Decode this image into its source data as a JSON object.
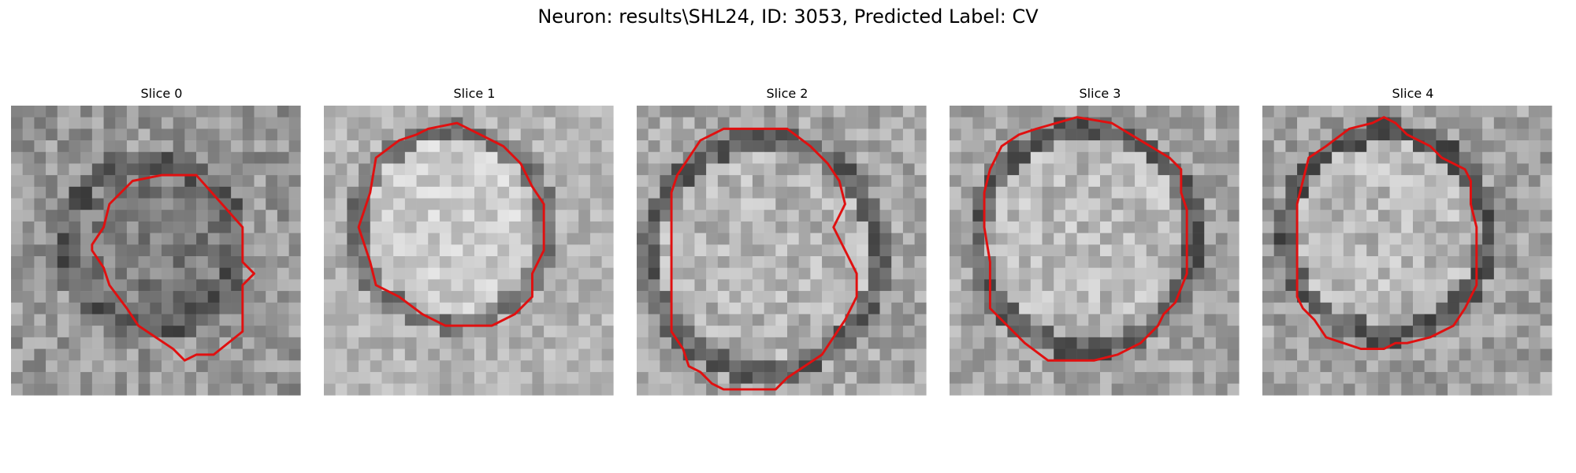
{
  "figure": {
    "title": "Neuron: results\\SHL24, ID: 3053, Predicted Label: CV",
    "contour_color": "#e01010"
  },
  "panels": [
    {
      "title": "Slice 0",
      "contour": [
        [
          13.5,
          5.5
        ],
        [
          15.5,
          5.5
        ],
        [
          19.5,
          10
        ],
        [
          19.5,
          13
        ],
        [
          20.5,
          14
        ],
        [
          19.5,
          15
        ],
        [
          19.5,
          19
        ],
        [
          17,
          21
        ],
        [
          15.5,
          21
        ],
        [
          14.5,
          21.5
        ],
        [
          13.5,
          20.5
        ],
        [
          12,
          19.5
        ],
        [
          10.5,
          18.5
        ],
        [
          9.5,
          17
        ],
        [
          8,
          15
        ],
        [
          7.5,
          13.5
        ],
        [
          6.5,
          12
        ],
        [
          6.5,
          11.5
        ],
        [
          7.5,
          10
        ],
        [
          8,
          8
        ],
        [
          10,
          6
        ],
        [
          12.5,
          5.5
        ]
      ]
    },
    {
      "title": "Slice 1",
      "contour": [
        [
          8.5,
          1.5
        ],
        [
          11,
          1
        ],
        [
          13,
          2
        ],
        [
          15,
          3
        ],
        [
          16.5,
          4.5
        ],
        [
          17.5,
          6.5
        ],
        [
          18.5,
          8
        ],
        [
          18.5,
          10
        ],
        [
          18.5,
          12
        ],
        [
          17.5,
          14
        ],
        [
          17.5,
          16
        ],
        [
          16,
          17.5
        ],
        [
          14,
          18.5
        ],
        [
          12,
          18.5
        ],
        [
          10,
          18.5
        ],
        [
          8,
          17.5
        ],
        [
          6,
          16
        ],
        [
          4,
          15
        ],
        [
          3.5,
          13
        ],
        [
          2.5,
          10
        ],
        [
          3.5,
          7
        ],
        [
          4,
          4
        ],
        [
          6,
          2.5
        ],
        [
          7.5,
          2
        ]
      ]
    },
    {
      "title": "Slice 2",
      "contour": [
        [
          7,
          1.5
        ],
        [
          12.5,
          1.5
        ],
        [
          14.5,
          3
        ],
        [
          16,
          4.5
        ],
        [
          17,
          6
        ],
        [
          17.5,
          8
        ],
        [
          16.5,
          10
        ],
        [
          17.5,
          12
        ],
        [
          18.5,
          14
        ],
        [
          18.5,
          16
        ],
        [
          17.5,
          18
        ],
        [
          16.5,
          19.5
        ],
        [
          15.5,
          21
        ],
        [
          14,
          22
        ],
        [
          12.5,
          23
        ],
        [
          11.5,
          24
        ],
        [
          7,
          24
        ],
        [
          6,
          23.5
        ],
        [
          5,
          22.5
        ],
        [
          4,
          22
        ],
        [
          3.5,
          20.5
        ],
        [
          2.5,
          19
        ],
        [
          2.5,
          16
        ],
        [
          2.5,
          13
        ],
        [
          2.5,
          7
        ],
        [
          3,
          5.5
        ],
        [
          4,
          4
        ],
        [
          5,
          2.5
        ]
      ]
    },
    {
      "title": "Slice 3",
      "contour": [
        [
          7,
          1.5
        ],
        [
          10.5,
          0.5
        ],
        [
          13.5,
          1
        ],
        [
          16,
          2.5
        ],
        [
          18.5,
          4
        ],
        [
          19.5,
          5
        ],
        [
          19.5,
          7
        ],
        [
          20,
          8.5
        ],
        [
          20,
          14
        ],
        [
          19,
          16.5
        ],
        [
          18,
          17.5
        ],
        [
          17.5,
          18.5
        ],
        [
          16,
          20
        ],
        [
          14,
          21
        ],
        [
          12,
          21.5
        ],
        [
          10,
          21.5
        ],
        [
          8,
          21.5
        ],
        [
          6,
          20
        ],
        [
          4.5,
          18.5
        ],
        [
          3,
          17
        ],
        [
          3,
          13
        ],
        [
          2.5,
          10
        ],
        [
          2.5,
          7
        ],
        [
          3,
          5
        ],
        [
          4,
          3
        ],
        [
          5.5,
          2
        ]
      ]
    },
    {
      "title": "Slice 4",
      "contour": [
        [
          7,
          1.5
        ],
        [
          9,
          1
        ],
        [
          10,
          0.5
        ],
        [
          11,
          1
        ],
        [
          12,
          2
        ],
        [
          13,
          2.5
        ],
        [
          14,
          3
        ],
        [
          15,
          4
        ],
        [
          17,
          5
        ],
        [
          17.5,
          6
        ],
        [
          17.5,
          8
        ],
        [
          18,
          10
        ],
        [
          18,
          13
        ],
        [
          18,
          15
        ],
        [
          17,
          17
        ],
        [
          16,
          18.5
        ],
        [
          15,
          19
        ],
        [
          14,
          19.5
        ],
        [
          12,
          20
        ],
        [
          11,
          20
        ],
        [
          10,
          20.5
        ],
        [
          8,
          20.5
        ],
        [
          6.5,
          20
        ],
        [
          5,
          19.5
        ],
        [
          4,
          18
        ],
        [
          3,
          17
        ],
        [
          2.5,
          16
        ],
        [
          2.5,
          13
        ],
        [
          2.5,
          10
        ],
        [
          2.5,
          8
        ],
        [
          3,
          6
        ],
        [
          3.5,
          4
        ],
        [
          5,
          3
        ]
      ]
    }
  ]
}
